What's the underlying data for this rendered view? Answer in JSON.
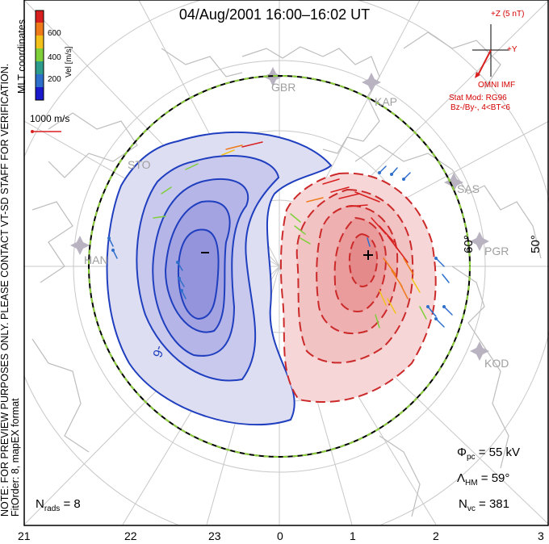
{
  "title": "04/Aug/2001  16:00–16:02  UT",
  "watermark_line1": "NOTE: FOR PREVIEW PURPOSES ONLY. PLEASE CONTACT VT-SD STAFF FOR VERIFICATION.",
  "watermark_line2": "FitOrder: 8, mapEX format",
  "coord_label": "MLT coordinates",
  "colorbar": {
    "label": "Vel [m/s]",
    "ticks": [
      "200",
      "400",
      "600"
    ],
    "colors": [
      "#1a1acc",
      "#2e6fcc",
      "#2e9c8c",
      "#7fcf3a",
      "#f2c21a",
      "#ef7a1a",
      "#d82020"
    ]
  },
  "ref_vector": "1000 m/s",
  "imf": {
    "z_label": "+Z (5 nT)",
    "y_label": "+Y",
    "source": "OMNI IMF",
    "model_line1": "Stat Mod: RG96",
    "model_line2": "Bz-/By-, 4<BT<6"
  },
  "stats": {
    "phi_symbol": "Φ",
    "phi_sub": "pc",
    "phi_value": "= 55 kV",
    "lambda_symbol": "Λ",
    "lambda_sub": "HM",
    "lambda_value": "= 59°",
    "nvc_symbol": "N",
    "nvc_sub": "vc",
    "nvc_value": "= 381",
    "nrads_symbol": "N",
    "nrads_sub": "rads",
    "nrads_value": "= 8"
  },
  "mlt_labels": [
    "21",
    "22",
    "23",
    "0",
    "1",
    "2",
    "3"
  ],
  "lat_labels": [
    "60°",
    "50°"
  ],
  "stations": [
    "GBR",
    "KAP",
    "SAS",
    "PGR",
    "KOD",
    "HAN",
    "STO"
  ],
  "contour_label": "-6",
  "min_marker": "−",
  "max_marker": "+",
  "colors": {
    "negative": "#1f3fbf",
    "positive": "#cc2a2a",
    "boundary": "#8ccf3a",
    "grid": "#c8c8c8",
    "coast": "#bdbdbd"
  }
}
